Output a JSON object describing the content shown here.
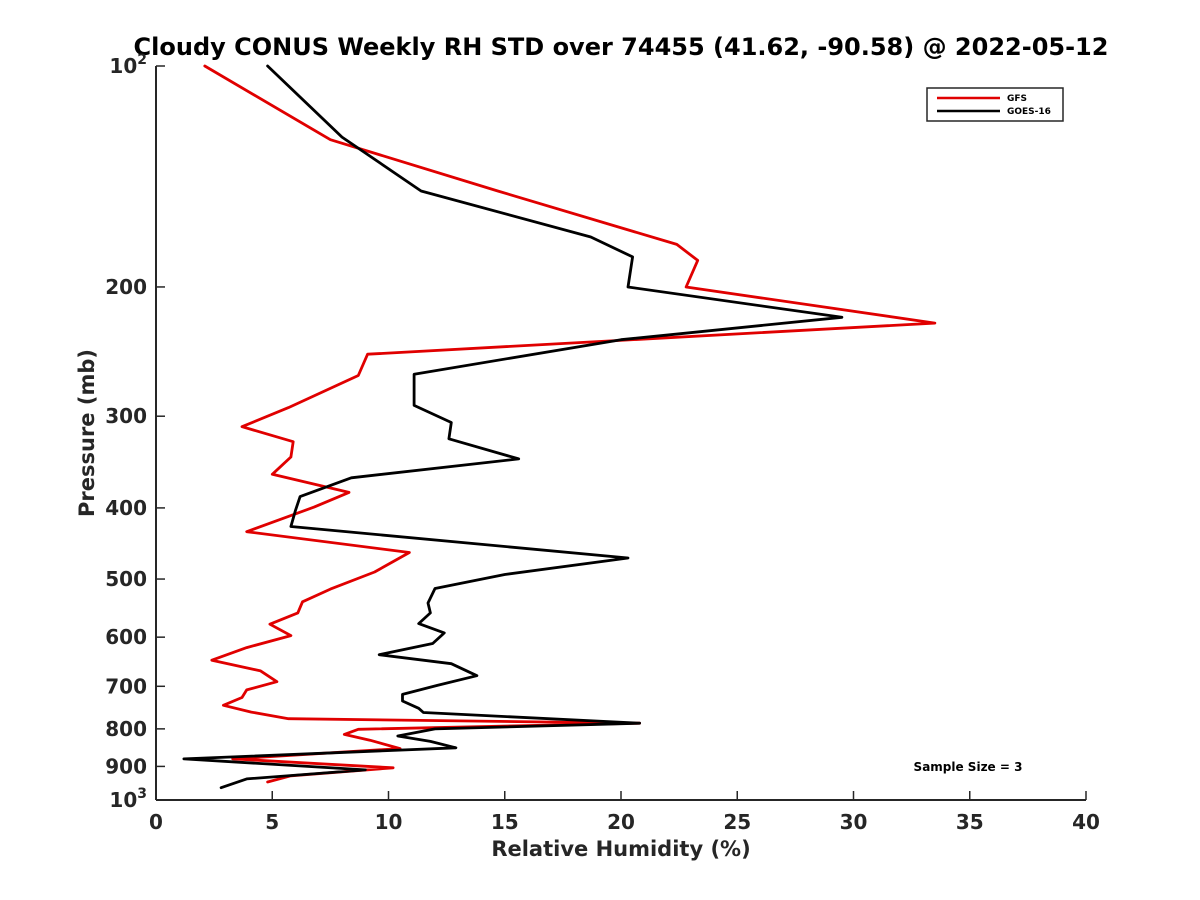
{
  "chart_data": {
    "type": "line",
    "title": "Cloudy CONUS Weekly RH STD over 74455 (41.62, -90.58) @ 2022-05-12",
    "xlabel": "Relative Humidity (%)",
    "ylabel": "Pressure (mb)",
    "xlim": [
      0,
      40
    ],
    "ylim": [
      100,
      1000
    ],
    "y_scale": "log",
    "y_reversed": true,
    "grid": false,
    "legend_position": "top-right",
    "x_ticks": [
      0,
      5,
      10,
      15,
      20,
      25,
      30,
      35,
      40
    ],
    "y_ticks": [
      {
        "value": 100,
        "base": "10",
        "exp": "2"
      },
      {
        "value": 200,
        "label": "200"
      },
      {
        "value": 300,
        "label": "300"
      },
      {
        "value": 400,
        "label": "400"
      },
      {
        "value": 500,
        "label": "500"
      },
      {
        "value": 600,
        "label": "600"
      },
      {
        "value": 700,
        "label": "700"
      },
      {
        "value": 800,
        "label": "800"
      },
      {
        "value": 900,
        "label": "900"
      },
      {
        "value": 1000,
        "base": "10",
        "exp": "3"
      }
    ],
    "series": [
      {
        "name": "GFS",
        "color": "#e00000",
        "x": [
          2.1,
          7.5,
          14.7,
          22.4,
          23.3,
          22.8,
          33.5,
          9.1,
          8.7,
          5.7,
          3.7,
          5.9,
          5.8,
          5.0,
          8.3,
          6.8,
          3.9,
          10.9,
          9.4,
          7.5,
          6.3,
          6.1,
          4.9,
          5.8,
          3.9,
          2.4,
          4.5,
          5.2,
          3.9,
          3.7,
          2.9,
          4.1,
          5.7,
          20.8,
          8.7,
          8.1,
          9.2,
          10.5,
          3.3,
          10.2,
          5.8,
          4.8
        ],
        "y": [
          100,
          126,
          148,
          175,
          184,
          200,
          224,
          247,
          264,
          292,
          310,
          325,
          341,
          360,
          381,
          399,
          431,
          460,
          489,
          516,
          537,
          556,
          576,
          597,
          620,
          645,
          667,
          690,
          708,
          725,
          743,
          759,
          775,
          786,
          801,
          814,
          829,
          851,
          879,
          904,
          927,
          945
        ]
      },
      {
        "name": "GOES-16",
        "color": "#000000",
        "x": [
          4.8,
          8.0,
          11.4,
          18.7,
          20.5,
          20.3,
          29.5,
          20.0,
          11.1,
          11.1,
          12.7,
          12.6,
          15.6,
          8.4,
          6.2,
          6.0,
          5.8,
          20.3,
          15.0,
          12.0,
          11.7,
          11.8,
          11.3,
          12.4,
          11.9,
          9.6,
          12.7,
          13.8,
          12.1,
          10.6,
          10.6,
          11.3,
          11.5,
          20.8,
          12.0,
          10.4,
          11.8,
          12.9,
          1.2,
          9.0,
          3.9,
          2.8
        ],
        "y": [
          100,
          125,
          148,
          171,
          182,
          200,
          220,
          236,
          263,
          290,
          306,
          322,
          343,
          364,
          386,
          403,
          424,
          468,
          493,
          515,
          539,
          556,
          575,
          592,
          612,
          634,
          652,
          677,
          698,
          718,
          733,
          750,
          760,
          786,
          800,
          818,
          832,
          849,
          879,
          910,
          936,
          962
        ]
      }
    ],
    "annotation": "Sample Size = 3"
  }
}
